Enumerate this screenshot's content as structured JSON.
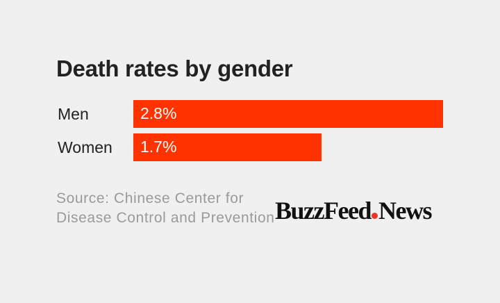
{
  "chart_data": {
    "type": "bar",
    "title": "Death rates by gender",
    "categories": [
      "Men",
      "Women"
    ],
    "values": [
      2.8,
      1.7
    ],
    "value_labels": [
      "2.8%",
      "1.7%"
    ],
    "xlabel": "",
    "ylabel": "",
    "xlim": [
      0,
      2.8
    ],
    "bar_color": "#ff3300",
    "grid": false
  },
  "source": "Source: Chinese Center for Disease Control and Prevention",
  "logo": {
    "left": "BuzzFeed",
    "right": "News",
    "dot_color": "#ee3322"
  }
}
